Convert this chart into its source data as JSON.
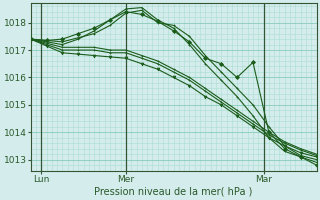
{
  "xlabel": "Pression niveau de la mer( hPa )",
  "bg_color": "#d4ecec",
  "grid_major_color": "#88ccbb",
  "grid_minor_color": "#aaddd0",
  "line_color": "#1a5c1a",
  "ylim": [
    1012.6,
    1018.7
  ],
  "xlim": [
    0,
    54
  ],
  "xtick_positions": [
    2,
    18,
    44
  ],
  "xtick_labels": [
    "Lun",
    "Mer",
    "Mar"
  ],
  "ytick_positions": [
    1013,
    1014,
    1015,
    1016,
    1017,
    1018
  ],
  "vline_positions": [
    2,
    18,
    44
  ],
  "series": [
    {
      "x": [
        0,
        3,
        6,
        9,
        12,
        15,
        18,
        21,
        24,
        27,
        30,
        33,
        36,
        39,
        42,
        45,
        48,
        51,
        54
      ],
      "y": [
        1017.4,
        1017.35,
        1017.3,
        1017.45,
        1017.6,
        1017.9,
        1018.35,
        1018.45,
        1018.0,
        1017.9,
        1017.5,
        1016.8,
        1016.2,
        1015.6,
        1015.0,
        1014.2,
        1013.5,
        1013.15,
        1013.0
      ],
      "marker": "+"
    },
    {
      "x": [
        0,
        3,
        6,
        9,
        12,
        15,
        18,
        21,
        24,
        27,
        30,
        33,
        36,
        39,
        42,
        45,
        48,
        51,
        54
      ],
      "y": [
        1017.4,
        1017.3,
        1017.2,
        1017.4,
        1017.7,
        1018.1,
        1018.5,
        1018.55,
        1018.1,
        1017.8,
        1017.2,
        1016.5,
        1015.9,
        1015.3,
        1014.6,
        1013.8,
        1013.3,
        1013.1,
        1012.9
      ],
      "marker": "+"
    },
    {
      "x": [
        0,
        3,
        6,
        9,
        12,
        15,
        18,
        21,
        24,
        27,
        30,
        33,
        36,
        39,
        42,
        45,
        48,
        51,
        54
      ],
      "y": [
        1017.4,
        1017.15,
        1016.9,
        1016.85,
        1016.8,
        1016.75,
        1016.7,
        1016.5,
        1016.3,
        1016.0,
        1015.7,
        1015.3,
        1015.0,
        1014.6,
        1014.2,
        1013.8,
        1013.5,
        1013.25,
        1013.1
      ],
      "marker": "v"
    },
    {
      "x": [
        0,
        3,
        6,
        9,
        12,
        15,
        18,
        21,
        24,
        27,
        30,
        33,
        36,
        39,
        42,
        45,
        48,
        51,
        54
      ],
      "y": [
        1017.4,
        1017.2,
        1017.0,
        1017.0,
        1017.0,
        1016.9,
        1016.9,
        1016.7,
        1016.5,
        1016.2,
        1015.9,
        1015.5,
        1015.1,
        1014.7,
        1014.3,
        1013.9,
        1013.6,
        1013.35,
        1013.15
      ],
      "marker": "+"
    },
    {
      "x": [
        0,
        3,
        6,
        9,
        12,
        15,
        18,
        21,
        24,
        27,
        30,
        33,
        36,
        39,
        42,
        45,
        48,
        51,
        54
      ],
      "y": [
        1017.4,
        1017.25,
        1017.1,
        1017.1,
        1017.1,
        1017.0,
        1017.0,
        1016.8,
        1016.6,
        1016.3,
        1016.0,
        1015.6,
        1015.2,
        1014.8,
        1014.4,
        1014.0,
        1013.65,
        1013.4,
        1013.2
      ],
      "marker": "+"
    },
    {
      "x": [
        0,
        3,
        6,
        9,
        12,
        15,
        18,
        21,
        24,
        27,
        30,
        33,
        36,
        39,
        42,
        45,
        48,
        51,
        54
      ],
      "y": [
        1017.4,
        1017.35,
        1017.4,
        1017.6,
        1017.8,
        1018.1,
        1018.4,
        1018.3,
        1018.05,
        1017.7,
        1017.3,
        1016.7,
        1016.5,
        1016.0,
        1016.55,
        1014.0,
        1013.4,
        1013.1,
        1012.8
      ],
      "marker": "D"
    }
  ]
}
